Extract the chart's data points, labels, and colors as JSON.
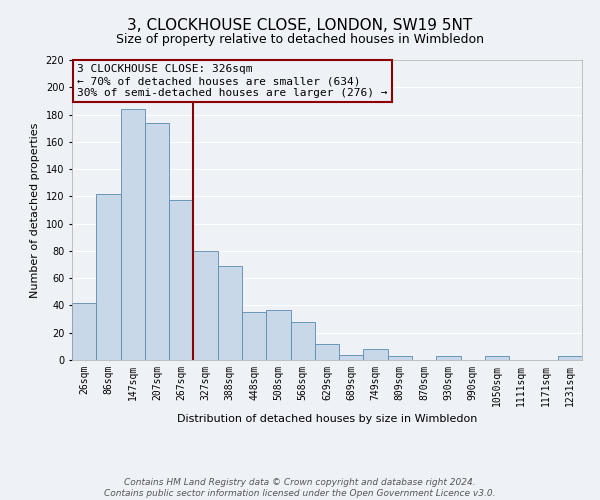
{
  "title": "3, CLOCKHOUSE CLOSE, LONDON, SW19 5NT",
  "subtitle": "Size of property relative to detached houses in Wimbledon",
  "xlabel": "Distribution of detached houses by size in Wimbledon",
  "ylabel": "Number of detached properties",
  "bar_labels": [
    "26sqm",
    "86sqm",
    "147sqm",
    "207sqm",
    "267sqm",
    "327sqm",
    "388sqm",
    "448sqm",
    "508sqm",
    "568sqm",
    "629sqm",
    "689sqm",
    "749sqm",
    "809sqm",
    "870sqm",
    "930sqm",
    "990sqm",
    "1050sqm",
    "1111sqm",
    "1171sqm",
    "1231sqm"
  ],
  "bar_values": [
    42,
    122,
    184,
    174,
    117,
    80,
    69,
    35,
    37,
    28,
    12,
    4,
    8,
    3,
    0,
    3,
    0,
    3,
    0,
    0,
    3
  ],
  "bar_color": "#c8d8e8",
  "bar_edge_color": "#5a8ab0",
  "vline_color": "#8b0000",
  "vline_x": 4.5,
  "annotation_title": "3 CLOCKHOUSE CLOSE: 326sqm",
  "annotation_line1": "← 70% of detached houses are smaller (634)",
  "annotation_line2": "30% of semi-detached houses are larger (276) →",
  "annotation_box_color": "#8b0000",
  "ylim": [
    0,
    220
  ],
  "yticks": [
    0,
    20,
    40,
    60,
    80,
    100,
    120,
    140,
    160,
    180,
    200,
    220
  ],
  "footer1": "Contains HM Land Registry data © Crown copyright and database right 2024.",
  "footer2": "Contains public sector information licensed under the Open Government Licence v3.0.",
  "background_color": "#eef2f7",
  "grid_color": "#ffffff",
  "title_fontsize": 11,
  "subtitle_fontsize": 9,
  "axis_label_fontsize": 8,
  "tick_fontsize": 7,
  "annotation_fontsize": 8,
  "footer_fontsize": 6.5
}
